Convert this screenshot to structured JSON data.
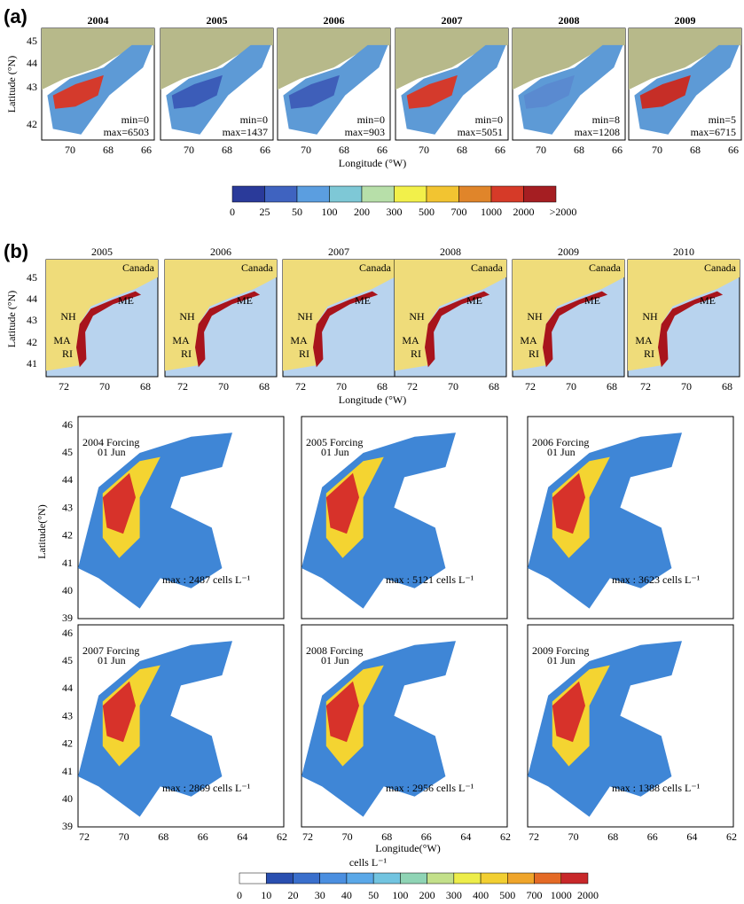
{
  "panel_a": {
    "label": "(a)",
    "years": [
      "2004",
      "2005",
      "2006",
      "2007",
      "2008",
      "2009"
    ],
    "mins": [
      "min=0",
      "min=0",
      "min=0",
      "min=0",
      "min=8",
      "min=5"
    ],
    "maxs": [
      "max=6503",
      "max=1437",
      "max=903",
      "max=5051",
      "max=1208",
      "max=6715"
    ],
    "yticks": [
      "45",
      "44",
      "43",
      "42"
    ],
    "xticks": [
      "70",
      "68",
      "66"
    ],
    "xlabel": "Longitude (°W)",
    "ylabel": "Latitude (°N)",
    "colorbar": [
      "0",
      "25",
      "50",
      "100",
      "200",
      "300",
      "500",
      "700",
      "1000",
      "2000",
      ">2000"
    ]
  },
  "panel_b": {
    "label": "(b)",
    "years": [
      "2005",
      "2006",
      "2007",
      "2008",
      "2009",
      "2010"
    ],
    "regions": [
      "Canada",
      "ME",
      "NH",
      "MA",
      "RI"
    ],
    "yticks": [
      "45",
      "44",
      "43",
      "42",
      "41"
    ],
    "xticks": [
      "72",
      "70",
      "68"
    ],
    "xlabel": "Longitude (°W)",
    "ylabel": "Latitude (°N)"
  },
  "panel_c": {
    "maps": [
      {
        "title": "2004 Forcing",
        "date": "01 Jun",
        "max": "max : 2487 cells L⁻¹"
      },
      {
        "title": "2005 Forcing",
        "date": "01 Jun",
        "max": "max : 5121 cells L⁻¹"
      },
      {
        "title": "2006 Forcing",
        "date": "01 Jun",
        "max": "max : 3623 cells L⁻¹"
      },
      {
        "title": "2007 Forcing",
        "date": "01 Jun",
        "max": "max : 2869 cells L⁻¹"
      },
      {
        "title": "2008 Forcing",
        "date": "01 Jun",
        "max": "max : 2956 cells L⁻¹"
      },
      {
        "title": "2009 Forcing",
        "date": "01 Jun",
        "max": "max : 1388 cells L⁻¹"
      }
    ],
    "yticks": [
      "46",
      "45",
      "44",
      "43",
      "42",
      "41",
      "40",
      "39"
    ],
    "xticks": [
      "72",
      "70",
      "68",
      "66",
      "64",
      "62"
    ],
    "xlabel": "Longitude(°W)",
    "ylabel": "Latitude(°N)",
    "colorbar_title": "cells L⁻¹",
    "colorbar": [
      "0",
      "10",
      "20",
      "30",
      "40",
      "50",
      "100",
      "200",
      "300",
      "400",
      "500",
      "700",
      "1000",
      "2000"
    ]
  }
}
